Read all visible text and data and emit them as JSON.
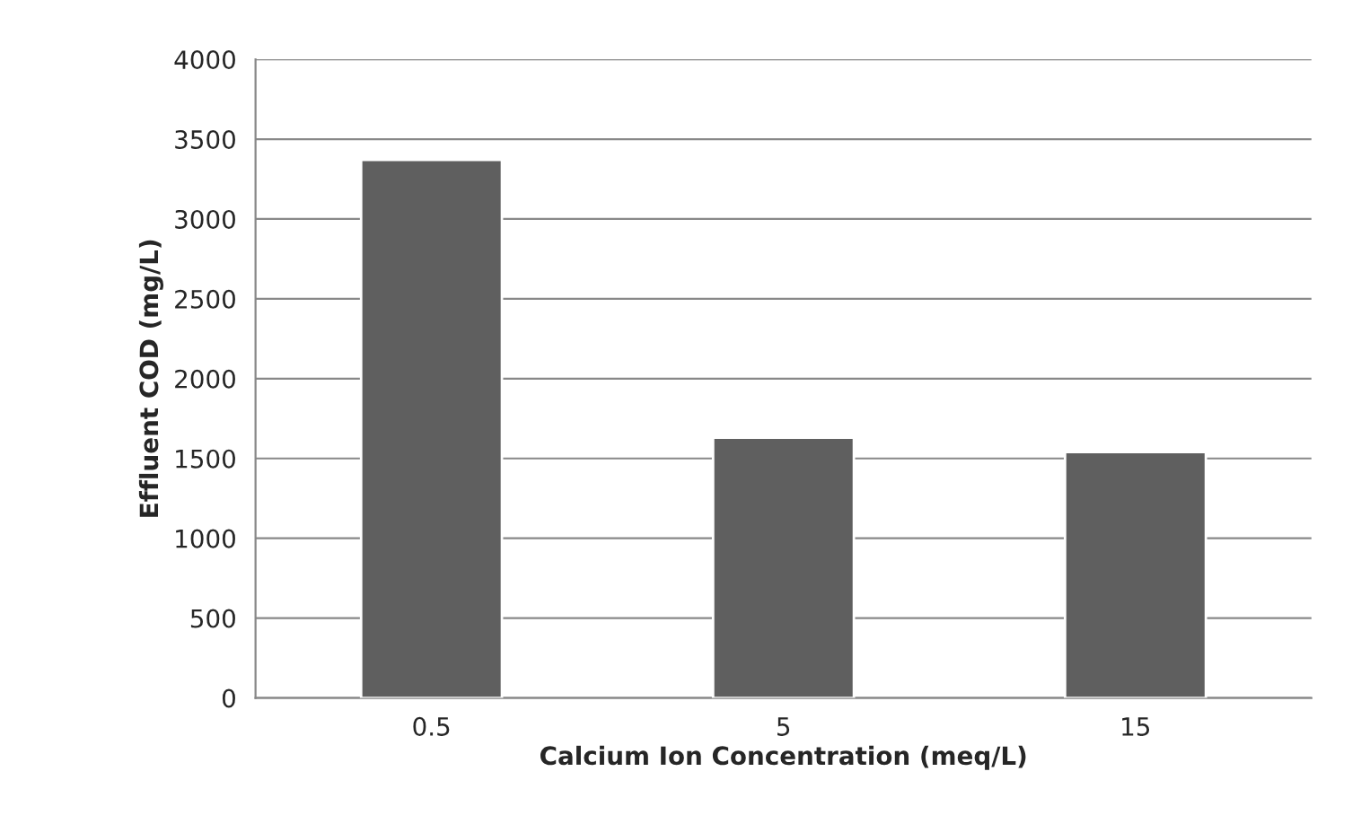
{
  "chart_data": {
    "type": "bar",
    "xlabel": "Calcium Ion Concentration (meq/L)",
    "ylabel": "Effluent COD (mg/L)",
    "categories": [
      "0.5",
      "5",
      "15"
    ],
    "values": [
      3370,
      1630,
      1540
    ],
    "color": "#5f5f5f",
    "ylim": [
      0,
      4000
    ],
    "yticks": [
      0,
      500,
      1000,
      1500,
      2000,
      2500,
      3000,
      3500,
      4000
    ],
    "grid": "y"
  }
}
